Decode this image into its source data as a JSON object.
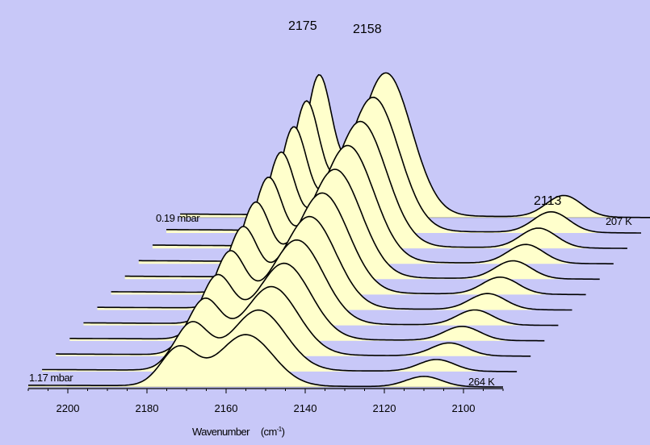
{
  "chart_data": {
    "type": "area",
    "style": "waterfall / stacked offset spectra",
    "title": "",
    "xlabel": "Wavenumber",
    "xunit": "(cm",
    "xunit_sup": "-1",
    "xunit_close": ")",
    "xlim": [
      2210,
      2090
    ],
    "x_ticks": [
      2200,
      2180,
      2160,
      2140,
      2120,
      2100
    ],
    "x_tick_labels": [
      "2200",
      "2180",
      "2160",
      "2140",
      "2120",
      "2100"
    ],
    "grid": false,
    "background_color": "#c8c8f8",
    "fill_color": "#ffffcc",
    "line_color": "#000000",
    "peak_labels": [
      "2175",
      "2158",
      "2113"
    ],
    "annotations": {
      "front_pressure": "1.17  mbar",
      "front_temperature": "264  K",
      "back_pressure": "0.19  mbar",
      "back_temperature": "207  K"
    },
    "series_count": 12,
    "series_ordering": "front trace 1.17 mbar / 264 K to back trace 0.19 mbar / 207 K",
    "peak_positions_cm-1": [
      2175,
      2158,
      2113
    ],
    "front_trace_peaks_cm-1": [
      2172,
      2155,
      2110
    ],
    "relative_intensity_front": {
      "2175": 0.55,
      "2158": 0.75,
      "2113": 0.15
    },
    "relative_intensity_back": {
      "2175": 0.95,
      "2158": 1.0,
      "2113": 0.15
    }
  }
}
